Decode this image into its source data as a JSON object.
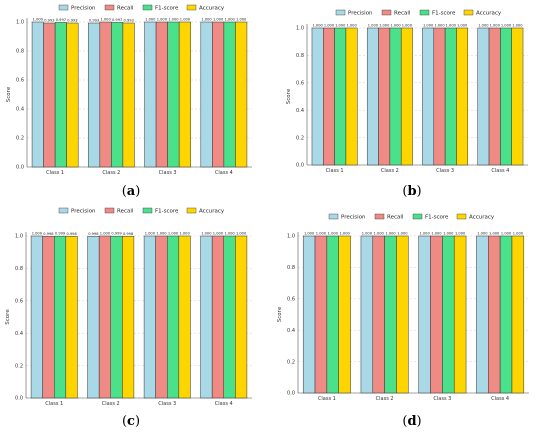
{
  "colors": {
    "precision": "#a9d8e6",
    "recall": "#f08a84",
    "f1": "#4be08a",
    "accuracy": "#ffd500"
  },
  "chart_data": [
    {
      "type": "bar",
      "caption": "(a)",
      "categories": [
        "Class 1",
        "Class 2",
        "Class 3",
        "Class 4"
      ],
      "ylabel": "Score",
      "ylim": [
        0,
        1.0
      ],
      "yticks": [
        "0.0",
        "0.2",
        "0.4",
        "0.6",
        "0.8",
        "1.0"
      ],
      "legend": "top-center",
      "grid": "horizontal dashed",
      "series": [
        {
          "name": "Precision",
          "values": [
            1.0,
            0.993,
            1.0,
            1.0
          ],
          "labels": [
            "1.000",
            "0.993",
            "1.000",
            "1.000"
          ]
        },
        {
          "name": "Recall",
          "values": [
            0.993,
            1.0,
            1.0,
            1.0
          ],
          "labels": [
            "0.993",
            "1.000",
            "1.000",
            "1.000"
          ]
        },
        {
          "name": "F1-score",
          "values": [
            0.997,
            0.997,
            1.0,
            1.0
          ],
          "labels": [
            "0.997",
            "0.997",
            "1.000",
            "1.000"
          ]
        },
        {
          "name": "Accuracy",
          "values": [
            0.993,
            0.993,
            1.0,
            1.0
          ],
          "labels": [
            "0.993",
            "0.993",
            "1.000",
            "1.000"
          ]
        }
      ]
    },
    {
      "type": "bar",
      "caption": "(b)",
      "categories": [
        "Class 1",
        "Class 2",
        "Class 3",
        "Class 4"
      ],
      "ylabel": "Score",
      "ylim": [
        0,
        1.0
      ],
      "yticks": [
        "0.0",
        "0.2",
        "0.4",
        "0.6",
        "0.8",
        "1.0"
      ],
      "legend": "top-center",
      "grid": "horizontal dashed",
      "series": [
        {
          "name": "Precision",
          "values": [
            1.0,
            1.0,
            1.0,
            1.0
          ],
          "labels": [
            "1.000",
            "1.000",
            "1.000",
            "1.000"
          ]
        },
        {
          "name": "Recall",
          "values": [
            1.0,
            1.0,
            1.0,
            1.0
          ],
          "labels": [
            "1.000",
            "1.000",
            "1.000",
            "1.000"
          ]
        },
        {
          "name": "F1-score",
          "values": [
            1.0,
            1.0,
            1.0,
            1.0
          ],
          "labels": [
            "1.000",
            "1.000",
            "1.000",
            "1.000"
          ]
        },
        {
          "name": "Accuracy",
          "values": [
            1.0,
            1.0,
            1.0,
            1.0
          ],
          "labels": [
            "1.000",
            "1.000",
            "1.000",
            "1.000"
          ]
        }
      ]
    },
    {
      "type": "bar",
      "caption": "(c)",
      "categories": [
        "Class 1",
        "Class 2",
        "Class 3",
        "Class 4"
      ],
      "ylabel": "Score",
      "ylim": [
        0,
        1.0
      ],
      "yticks": [
        "0.0",
        "0.2",
        "0.4",
        "0.6",
        "0.8",
        "1.0"
      ],
      "legend": "top-center",
      "grid": "horizontal dashed",
      "series": [
        {
          "name": "Precision",
          "values": [
            1.0,
            0.998,
            1.0,
            1.0
          ],
          "labels": [
            "1.000",
            "0.998",
            "1.000",
            "1.000"
          ]
        },
        {
          "name": "Recall",
          "values": [
            0.998,
            1.0,
            1.0,
            1.0
          ],
          "labels": [
            "0.998",
            "1.000",
            "1.000",
            "1.000"
          ]
        },
        {
          "name": "F1-score",
          "values": [
            0.999,
            0.999,
            1.0,
            1.0
          ],
          "labels": [
            "0.999",
            "0.999",
            "1.000",
            "1.000"
          ]
        },
        {
          "name": "Accuracy",
          "values": [
            0.998,
            0.998,
            1.0,
            1.0
          ],
          "labels": [
            "0.998",
            "0.998",
            "1.000",
            "1.000"
          ]
        }
      ]
    },
    {
      "type": "bar",
      "caption": "(d)",
      "categories": [
        "Class 1",
        "Class 2",
        "Class 3",
        "Class 4"
      ],
      "ylabel": "Score",
      "ylim": [
        0,
        1.0
      ],
      "yticks": [
        "0.0",
        "0.2",
        "0.4",
        "0.6",
        "0.8",
        "1.0"
      ],
      "legend": "top-center",
      "grid": "horizontal dashed",
      "series": [
        {
          "name": "Precision",
          "values": [
            1.0,
            1.0,
            1.0,
            1.0
          ],
          "labels": [
            "1.000",
            "1.000",
            "1.000",
            "1.000"
          ]
        },
        {
          "name": "Recall",
          "values": [
            1.0,
            1.0,
            1.0,
            1.0
          ],
          "labels": [
            "1.000",
            "1.000",
            "1.000",
            "1.000"
          ]
        },
        {
          "name": "F1-score",
          "values": [
            1.0,
            1.0,
            1.0,
            1.0
          ],
          "labels": [
            "1.000",
            "1.000",
            "1.000",
            "1.000"
          ]
        },
        {
          "name": "Accuracy",
          "values": [
            1.0,
            1.0,
            1.0,
            1.0
          ],
          "labels": [
            "1.000",
            "1.000",
            "1.000",
            "1.000"
          ]
        }
      ]
    }
  ]
}
